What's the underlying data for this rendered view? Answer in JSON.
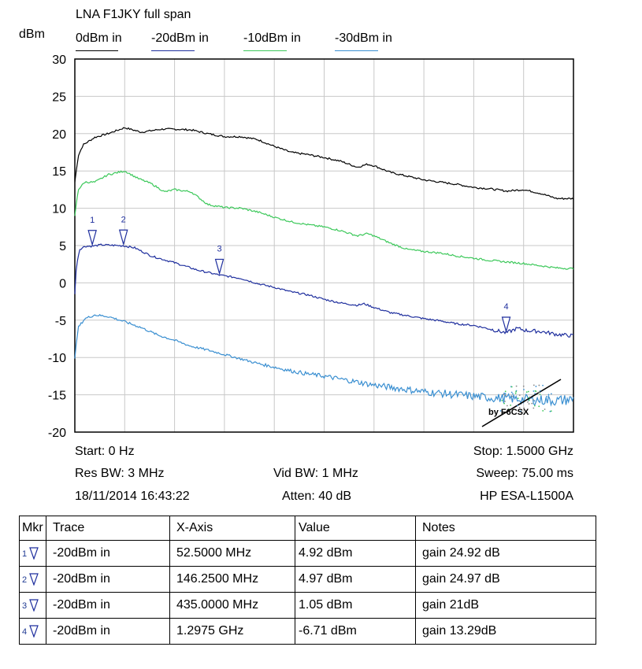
{
  "chart_data": {
    "type": "line",
    "title": "LNA F1JKY full span",
    "ylabel": "dBm",
    "xlim": [
      0,
      1500
    ],
    "ylim": [
      -20,
      30
    ],
    "yticks": [
      "30",
      "25",
      "20",
      "15",
      "10",
      "5",
      "0",
      "-5",
      "-10",
      "-15",
      "-20"
    ],
    "grid": true,
    "legend_placement": "top",
    "series": [
      {
        "name": "0dBm in",
        "color": "#000000",
        "x": [
          0,
          10,
          25,
          60,
          100,
          150,
          200,
          260,
          300,
          350,
          400,
          450,
          500,
          550,
          600,
          650,
          700,
          750,
          800,
          850,
          880,
          900,
          950,
          1000,
          1050,
          1100,
          1150,
          1200,
          1250,
          1300,
          1350,
          1400,
          1450,
          1500
        ],
        "y": [
          13.5,
          17,
          18.5,
          19.5,
          20,
          20.8,
          20.2,
          20.6,
          20.6,
          20.5,
          20,
          19.6,
          19.6,
          19.2,
          18.3,
          17.5,
          17.2,
          16.8,
          16.3,
          15.5,
          15.9,
          15.7,
          14.8,
          14.3,
          13.8,
          13.5,
          13.2,
          12.8,
          12.6,
          12.3,
          12.5,
          12,
          11.3,
          11.3
        ]
      },
      {
        "name": "-20dBm in",
        "color": "#1f2f9e",
        "x": [
          0,
          5,
          15,
          30,
          52.5,
          80,
          146.25,
          180,
          230,
          300,
          370,
          435,
          500,
          550,
          600,
          650,
          700,
          750,
          800,
          850,
          870,
          900,
          950,
          1000,
          1050,
          1100,
          1150,
          1200,
          1250,
          1297.5,
          1330,
          1360,
          1400,
          1450,
          1500
        ],
        "y": [
          -1.5,
          2.5,
          4.5,
          4.9,
          4.92,
          5.1,
          4.97,
          4.7,
          3.6,
          2.7,
          1.7,
          1.05,
          0.6,
          -0.1,
          -0.6,
          -1.2,
          -1.6,
          -2.2,
          -2.7,
          -3,
          -2.8,
          -3.3,
          -4,
          -4.4,
          -4.8,
          -5.1,
          -5.5,
          -5.7,
          -6.2,
          -6.71,
          -6.1,
          -6.4,
          -6.5,
          -6.9,
          -7.1
        ]
      },
      {
        "name": "-10dBm in",
        "color": "#3cc85a",
        "x": [
          0,
          10,
          30,
          60,
          100,
          150,
          190,
          230,
          270,
          300,
          350,
          400,
          450,
          500,
          550,
          600,
          650,
          700,
          750,
          800,
          850,
          880,
          900,
          950,
          1000,
          1050,
          1100,
          1150,
          1200,
          1250,
          1300,
          1350,
          1400,
          1450,
          1500
        ],
        "y": [
          9,
          12.5,
          13.5,
          13.5,
          14.5,
          15,
          14,
          13.3,
          12.2,
          12.5,
          12.2,
          10.5,
          10.1,
          10,
          9.5,
          8.8,
          8.2,
          7.8,
          7.5,
          7,
          6.3,
          6.6,
          6.3,
          5.3,
          4.5,
          4.2,
          4,
          3.6,
          3.3,
          3,
          2.8,
          2.6,
          2.3,
          2,
          1.9
        ]
      },
      {
        "name": "-30dBm in",
        "color": "#3a8fd1",
        "x": [
          0,
          10,
          30,
          60,
          100,
          150,
          200,
          250,
          300,
          350,
          400,
          450,
          500,
          550,
          600,
          650,
          700,
          750,
          800,
          850,
          900,
          950,
          1000,
          1050,
          1100,
          1150,
          1200,
          1250,
          1300,
          1350,
          1400,
          1450,
          1500
        ],
        "y": [
          -10,
          -6,
          -4.8,
          -4.3,
          -4.5,
          -5.2,
          -6,
          -7,
          -7.7,
          -8.5,
          -9,
          -9.6,
          -10.2,
          -10.8,
          -11.3,
          -11.8,
          -12.2,
          -12.5,
          -12.9,
          -13.3,
          -13.7,
          -14,
          -14.3,
          -14.6,
          -14.8,
          -15,
          -15.2,
          -15.4,
          -15.5,
          -15.6,
          -15.7,
          -15.8,
          -15.6
        ]
      }
    ],
    "markers": [
      {
        "label": "1",
        "x": 52.5,
        "y": 4.92
      },
      {
        "label": "2",
        "x": 146.25,
        "y": 4.97
      },
      {
        "label": "3",
        "x": 435,
        "y": 1.05
      },
      {
        "label": "4",
        "x": 1297.5,
        "y": -6.71
      }
    ],
    "watermark": "by F6CSX"
  },
  "info": {
    "start": "Start: 0 Hz",
    "stop": "Stop: 1.5000 GHz",
    "res_bw": "Res BW: 3 MHz",
    "vid_bw": "Vid BW: 1 MHz",
    "sweep": "Sweep: 75.00 ms",
    "datetime": "18/11/2014 16:43:22",
    "atten": "Atten: 40 dB",
    "instrument": "HP ESA-L1500A"
  },
  "marker_table": {
    "headers": [
      "Mkr",
      "Trace",
      "X-Axis",
      "Value",
      "Notes"
    ],
    "rows": [
      {
        "mkr": "1",
        "trace": "-20dBm in",
        "x": "52.5000 MHz",
        "value": "4.92 dBm",
        "notes": "gain 24.92 dB"
      },
      {
        "mkr": "2",
        "trace": "-20dBm in",
        "x": "146.2500 MHz",
        "value": "4.97 dBm",
        "notes": "gain 24.97 dB"
      },
      {
        "mkr": "3",
        "trace": "-20dBm in",
        "x": "435.0000 MHz",
        "value": "1.05 dBm",
        "notes": "gain 21dB"
      },
      {
        "mkr": "4",
        "trace": "-20dBm in",
        "x": "1.2975 GHz",
        "value": "-6.71 dBm",
        "notes": "gain 13.29dB"
      }
    ]
  }
}
